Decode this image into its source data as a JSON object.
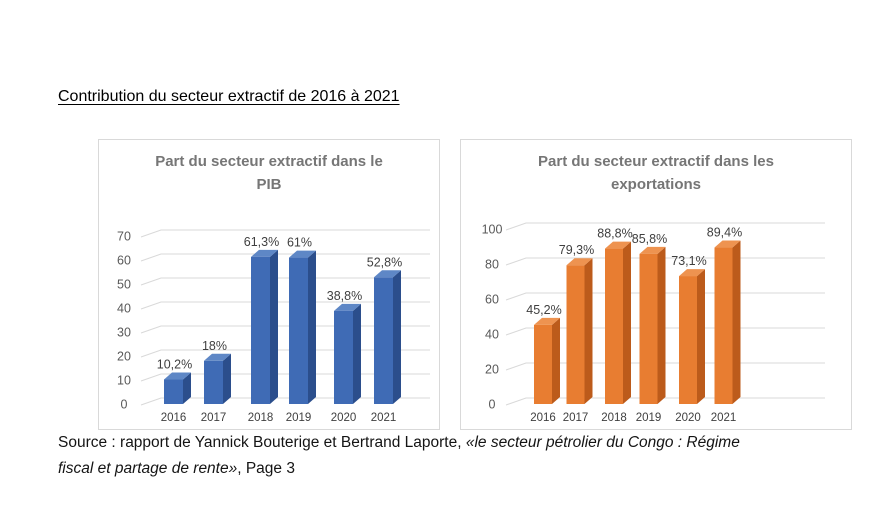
{
  "page": {
    "heading": "Contribution du secteur extractif de 2016 à 2021",
    "source": {
      "line1_normal": "Source : rapport de Yannick Bouterige et Bertrand Laporte, ",
      "line1_italic": "«le secteur pétrolier du Congo : Régime",
      "line2_italic": "fiscal et partage de rente»",
      "line2_normal": ", Page 3"
    }
  },
  "palette": {
    "panel_border": "#d9d9d9",
    "grid": "#d9d9d9",
    "tick_text": "#595959",
    "label_text": "#3f3f3f",
    "title_text": "#767676"
  },
  "chart_data": [
    {
      "type": "bar",
      "style": "3d-column",
      "title": "Part du secteur extractif dans le PIB",
      "title_lines": [
        "Part du secteur extractif dans le",
        "PIB"
      ],
      "categories": [
        "2016",
        "2017",
        "2018",
        "2019",
        "2020",
        "2021"
      ],
      "values": [
        10.2,
        18,
        61.3,
        61,
        38.8,
        52.8
      ],
      "value_labels": [
        "10,2%",
        "18%",
        "61,3%",
        "61%",
        "38,8%",
        "52,8%"
      ],
      "ylim": [
        0,
        70
      ],
      "yticks": [
        0,
        10,
        20,
        30,
        40,
        50,
        60,
        70
      ],
      "grid": true,
      "legend": "none",
      "colors": {
        "front": "#3f6bb5",
        "side": "#2b4e8c",
        "top": "#5e87c6"
      }
    },
    {
      "type": "bar",
      "style": "3d-column",
      "title": "Part du secteur extractif dans les exportations",
      "title_lines": [
        "Part du secteur extractif dans les",
        "exportations"
      ],
      "categories": [
        "2016",
        "2017",
        "2018",
        "2019",
        "2020",
        "2021"
      ],
      "values": [
        45.2,
        79.3,
        88.8,
        85.8,
        73.1,
        89.4
      ],
      "value_labels": [
        "45,2%",
        "79,3%",
        "88,8%",
        "85,8%",
        "73,1%",
        "89,4%"
      ],
      "ylim": [
        0,
        100
      ],
      "yticks": [
        0,
        20,
        40,
        60,
        80,
        100
      ],
      "grid": true,
      "legend": "none",
      "colors": {
        "front": "#e87d31",
        "side": "#bc5b1b",
        "top": "#ee9350"
      }
    }
  ]
}
